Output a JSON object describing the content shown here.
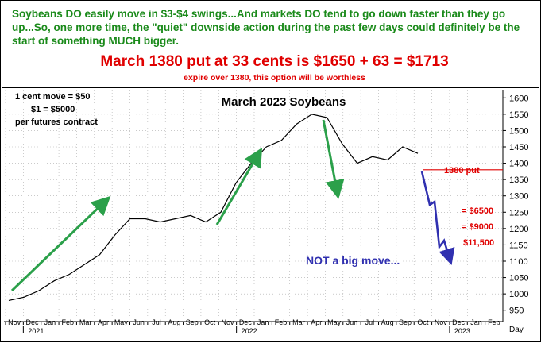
{
  "header": {
    "line1": "Soybeans DO easily move in $3-$4 swings...And markets DO tend to go down faster than they go up...So, one more time, the \"quiet\" downside action during the past few days could definitely be the start of something MUCH bigger.",
    "line2": "March 1380 put at 33 cents is $1650 + 63 = $1713",
    "line3": "expire over 1380, this option will be worthless"
  },
  "chart_data": {
    "type": "line",
    "title": "March 2023 Soybeans",
    "xlabel": "Day",
    "ylabel": "",
    "ylim": [
      925,
      1625
    ],
    "y_ticks": [
      950,
      1000,
      1050,
      1100,
      1150,
      1200,
      1250,
      1300,
      1350,
      1400,
      1450,
      1500,
      1550,
      1600
    ],
    "x_month_labels": [
      "Nov",
      "Dec",
      "Jan",
      "Feb",
      "Mar",
      "Apr",
      "May",
      "Jun",
      "Jul",
      "Aug",
      "Sep",
      "Oct",
      "Nov",
      "Dec",
      "Jan",
      "Feb",
      "Mar",
      "Apr",
      "May",
      "Jun",
      "Jul",
      "Aug",
      "Sep",
      "Oct",
      "Nov",
      "Dec",
      "Jan",
      "Feb"
    ],
    "x_year_labels": [
      "2021",
      "2022",
      "2023"
    ],
    "info_box": [
      "1 cent move = $50",
      "$1 = $5000",
      "per futures contract"
    ],
    "annotations": {
      "put_label": "1380 put",
      "put_level": 1380,
      "loss_labels": [
        "= $6500",
        "= $9000",
        "$11,500"
      ],
      "note": "NOT a big move..."
    },
    "series": [
      {
        "values_description": "price path",
        "points": [
          [
            0,
            980
          ],
          [
            1,
            990
          ],
          [
            2,
            1010
          ],
          [
            3,
            1040
          ],
          [
            4,
            1060
          ],
          [
            5,
            1090
          ],
          [
            6,
            1120
          ],
          [
            7,
            1180
          ],
          [
            8,
            1230
          ],
          [
            9,
            1230
          ],
          [
            10,
            1220
          ],
          [
            11,
            1230
          ],
          [
            12,
            1240
          ],
          [
            13,
            1220
          ],
          [
            14,
            1250
          ],
          [
            15,
            1340
          ],
          [
            16,
            1400
          ],
          [
            17,
            1450
          ],
          [
            18,
            1470
          ],
          [
            19,
            1520
          ],
          [
            20,
            1550
          ],
          [
            21,
            1540
          ],
          [
            22,
            1460
          ],
          [
            23,
            1400
          ],
          [
            24,
            1420
          ],
          [
            25,
            1410
          ],
          [
            26,
            1450
          ],
          [
            27,
            1430
          ]
        ]
      }
    ],
    "colors": {
      "price": "#000000",
      "green_arrow": "#2ba04a",
      "blue_arrow": "#3030b0",
      "red": "#e00000",
      "grid": "#aaaaaa"
    }
  }
}
